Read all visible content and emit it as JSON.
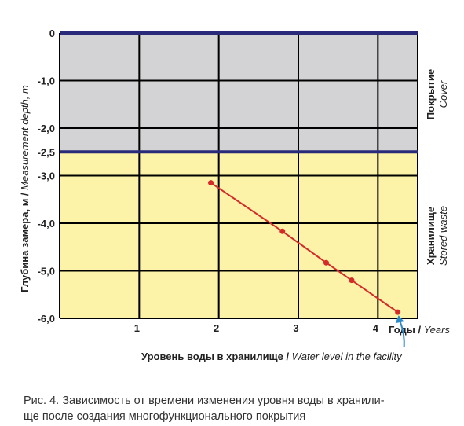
{
  "chart_data": {
    "type": "line",
    "x": [
      1.9,
      2.8,
      3.35,
      3.67,
      4.25
    ],
    "y": [
      -3.15,
      -4.17,
      -4.83,
      -5.2,
      -5.87
    ],
    "xlim": [
      0,
      4.5
    ],
    "ylim": [
      -6.0,
      0
    ],
    "x_ticks": [
      "1",
      "2",
      "3",
      "4"
    ],
    "y_ticks": [
      "0",
      "-1,0",
      "-2,0",
      "-2,5",
      "-3,0",
      "-4,0",
      "-5,0",
      "-6,0"
    ],
    "xlabel": {
      "ru": "Годы",
      "en": "Years"
    },
    "ylabel": {
      "ru": "Глубина замера, м",
      "en": "Measurement depth, m"
    },
    "zones": [
      {
        "from": 0,
        "to": -2.5,
        "ru": "Покрытие",
        "en": "Cover",
        "color": "#d3d3d5"
      },
      {
        "from": -2.5,
        "to": -6.0,
        "ru": "Хранилище",
        "en": "Stored waste",
        "color": "#fdf3a8"
      }
    ],
    "boundary_color": "#2a2a7a",
    "series_color": "#d42a2a",
    "grid": true,
    "annotation": {
      "ru": "Уровень воды в хранилище",
      "en": "Water level in the facility",
      "arrow_color": "#2a8ac8"
    }
  },
  "caption": {
    "line1": "Рис. 4. Зависимость от времени изменения уровня воды в хранили-",
    "line2": "ще после создания многофункционального покрытия"
  }
}
